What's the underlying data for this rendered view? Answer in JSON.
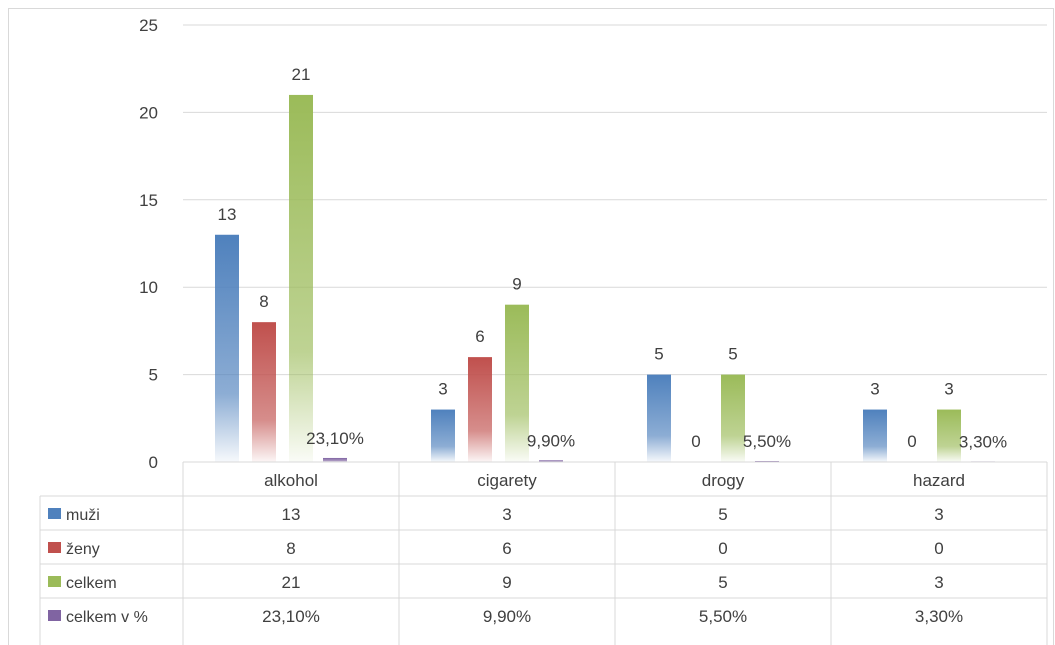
{
  "chart_data": {
    "type": "bar",
    "categories": [
      "alkohol",
      "cigarety",
      "drogy",
      "hazard"
    ],
    "ylim": [
      0,
      25
    ],
    "yticks": [
      0,
      5,
      10,
      15,
      20,
      25
    ],
    "grid": true,
    "legend": "data-table",
    "series": [
      {
        "name": "muži",
        "values": [
          13,
          3,
          5,
          3
        ],
        "labels": [
          "13",
          "3",
          "5",
          "3"
        ],
        "color": "#4f81bd"
      },
      {
        "name": "ženy",
        "values": [
          8,
          6,
          0,
          0
        ],
        "labels": [
          "8",
          "6",
          "0",
          "0"
        ],
        "color": "#c0504d"
      },
      {
        "name": "celkem",
        "values": [
          21,
          9,
          5,
          3
        ],
        "labels": [
          "21",
          "9",
          "5",
          "3"
        ],
        "color": "#9bbb59"
      },
      {
        "name": "celkem v %",
        "values": [
          0.231,
          0.099,
          0.055,
          0.033
        ],
        "labels": [
          "23,10%",
          "9,90%",
          "5,50%",
          "3,30%"
        ],
        "color": "#8064a2"
      }
    ]
  }
}
